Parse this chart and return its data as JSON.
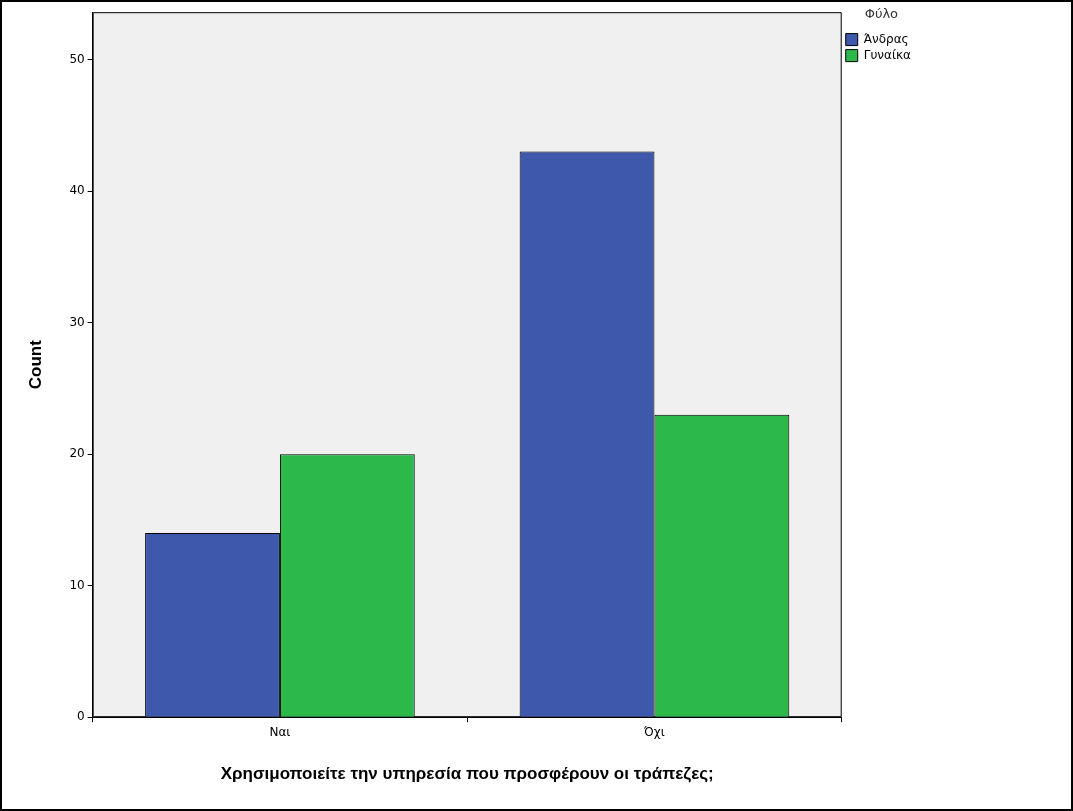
{
  "chart_data": {
    "type": "bar",
    "xlabel": "Χρησιμοποιείτε την υπηρεσία που προσφέρουν οι τράπεζες;",
    "ylabel": "Count",
    "legend_title": "Φύλο",
    "categories": [
      "Ναι",
      "Όχι"
    ],
    "series": [
      {
        "name": "Άνδρας",
        "color": "#3e58ac",
        "values": [
          14,
          43
        ]
      },
      {
        "name": "Γυναίκα",
        "color": "#2db84a",
        "values": [
          20,
          23
        ]
      }
    ],
    "ylim": [
      0,
      53.6
    ],
    "yticks": [
      0,
      10,
      20,
      30,
      40,
      50
    ],
    "grid": false,
    "legend": "top right"
  }
}
